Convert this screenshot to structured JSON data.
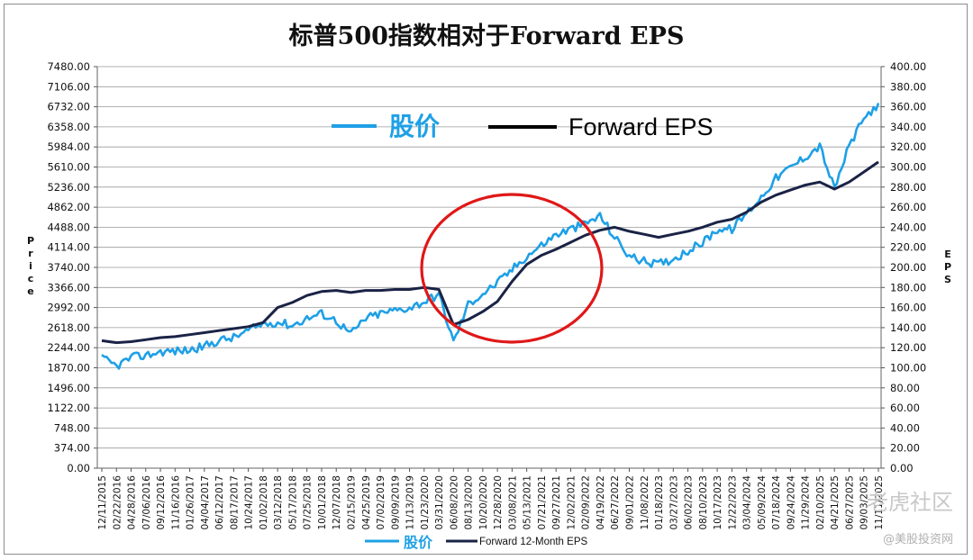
{
  "chart_data": {
    "type": "line",
    "title": "标普500指数相对于Forward EPS",
    "ylabel_left": "Price",
    "ylabel_right": "EPS",
    "ylim_left": [
      0,
      7480
    ],
    "ylim_right": [
      0,
      400
    ],
    "yticks_left": [
      "7480.00",
      "7106.00",
      "6732.00",
      "6358.00",
      "5984.00",
      "5610.00",
      "5236.00",
      "4862.00",
      "4488.00",
      "4114.00",
      "3740.00",
      "3366.00",
      "2992.00",
      "2618.00",
      "2244.00",
      "1870.00",
      "1496.00",
      "1122.00",
      "748.00",
      "374.00",
      "0.00"
    ],
    "yticks_right": [
      "400.00",
      "380.00",
      "360.00",
      "340.00",
      "320.00",
      "300.00",
      "280.00",
      "260.00",
      "240.00",
      "220.00",
      "200.00",
      "180.00",
      "160.00",
      "140.00",
      "120.00",
      "100.00",
      "80.00",
      "60.00",
      "40.00",
      "20.00",
      "0.00"
    ],
    "xticks": [
      "12/11/2015",
      "02/22/2016",
      "04/28/2016",
      "07/06/2016",
      "09/12/2016",
      "11/16/2016",
      "01/26/2017",
      "04/04/2017",
      "06/12/2017",
      "08/17/2017",
      "10/24/2017",
      "01/02/2018",
      "03/12/2018",
      "05/17/2018",
      "07/25/2018",
      "10/01/2018",
      "12/07/2018",
      "02/15/2019",
      "04/25/2019",
      "07/02/2019",
      "09/09/2019",
      "11/13/2019",
      "01/23/2020",
      "03/31/2020",
      "06/08/2020",
      "08/13/2020",
      "10/20/2020",
      "12/28/2020",
      "03/08/2021",
      "05/13/2021",
      "07/21/2021",
      "09/27/2021",
      "12/02/2021",
      "02/09/2022",
      "04/19/2022",
      "06/27/2022",
      "09/01/2022",
      "11/08/2022",
      "01/18/2023",
      "03/27/2023",
      "06/02/2023",
      "08/10/2023",
      "10/17/2023",
      "12/22/2023",
      "03/04/2024",
      "05/09/2024",
      "07/18/2024",
      "09/24/2024",
      "11/29/2024",
      "02/10/2025",
      "04/21/2025",
      "06/27/2025",
      "09/03/2025",
      "11/11/2025"
    ],
    "legend_top": {
      "price": "股价",
      "eps": "Forward EPS"
    },
    "legend_bottom": {
      "price": "股价",
      "eps": "Forward 12-Month EPS"
    },
    "series": [
      {
        "name": "股价",
        "axis": "left",
        "color": "#1ea0e6",
        "values": [
          2050,
          1900,
          2060,
          2100,
          2170,
          2180,
          2200,
          2270,
          2380,
          2430,
          2560,
          2690,
          2720,
          2660,
          2790,
          2880,
          2750,
          2500,
          2790,
          2880,
          2940,
          2990,
          3100,
          3240,
          2350,
          3050,
          3250,
          3450,
          3700,
          3950,
          4150,
          4350,
          4450,
          4550,
          4700,
          4300,
          3950,
          3850,
          3800,
          3900,
          4050,
          4200,
          4450,
          4450,
          4750,
          5050,
          5400,
          5600,
          5800,
          6000,
          5200,
          6000,
          6500,
          6800
        ]
      },
      {
        "name": "Forward 12-Month EPS",
        "axis": "right",
        "color": "#1a2346",
        "values": [
          127,
          125,
          126,
          128,
          130,
          131,
          133,
          135,
          137,
          139,
          141,
          145,
          160,
          165,
          172,
          176,
          177,
          175,
          177,
          177,
          178,
          178,
          180,
          178,
          143,
          148,
          156,
          166,
          186,
          203,
          212,
          218,
          225,
          232,
          237,
          240,
          236,
          233,
          230,
          233,
          236,
          240,
          245,
          248,
          255,
          265,
          272,
          277,
          282,
          285,
          278,
          285,
          295,
          305
        ]
      }
    ],
    "annotation": "red circle highlighting 03/2020 to 02/2022"
  },
  "watermark": {
    "line1": "老虎社区",
    "line2": "@美股投资网"
  }
}
